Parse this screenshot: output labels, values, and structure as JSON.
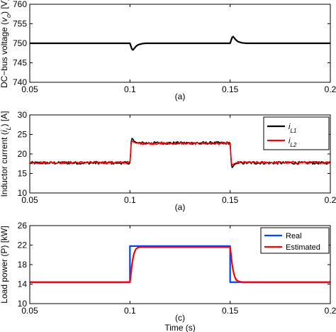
{
  "chart_data": [
    {
      "id": "dcbus",
      "type": "line",
      "caption": "(a)",
      "ylabel": "DC−bus voltage (v_o) [V]",
      "xlim": [
        0.05,
        0.2
      ],
      "ylim": [
        740,
        760
      ],
      "xticks": [
        "0.05",
        "0.1",
        "0.15",
        "0.2"
      ],
      "yticks": [
        "740",
        "745",
        "750",
        "755",
        "760"
      ],
      "grid": false,
      "series": [
        {
          "color": "#000000",
          "x": [
            0.05,
            0.1,
            0.1005,
            0.101,
            0.1015,
            0.102,
            0.103,
            0.104,
            0.106,
            0.108,
            0.11,
            0.15,
            0.1505,
            0.151,
            0.1515,
            0.152,
            0.153,
            0.154,
            0.156,
            0.158,
            0.16,
            0.2
          ],
          "y": [
            750,
            750,
            749.2,
            748.5,
            748.3,
            748.6,
            749.2,
            749.6,
            749.9,
            750,
            750,
            750,
            750.8,
            751.5,
            751.7,
            751.4,
            750.8,
            750.4,
            750.1,
            750,
            750,
            750
          ]
        }
      ]
    },
    {
      "id": "inductor",
      "type": "line",
      "caption": "(a)",
      "ylabel": "Inductor current (i_L) [A]",
      "xlim": [
        0.05,
        0.2
      ],
      "ylim": [
        10,
        30
      ],
      "xticks": [
        "0.05",
        "0.1",
        "0.15",
        "0.2"
      ],
      "yticks": [
        "10",
        "15",
        "20",
        "25",
        "30"
      ],
      "grid": false,
      "legend": "top-right",
      "series": [
        {
          "name": "i_L1",
          "color": "#000000",
          "noise": 0.35,
          "x": [
            0.05,
            0.1,
            0.1003,
            0.1006,
            0.101,
            0.1015,
            0.102,
            0.103,
            0.104,
            0.105,
            0.15,
            0.1503,
            0.1506,
            0.151,
            0.1515,
            0.152,
            0.153,
            0.154,
            0.155,
            0.2
          ],
          "y": [
            17.7,
            17.7,
            20,
            23,
            24,
            23.8,
            23.3,
            23,
            22.8,
            22.8,
            22.8,
            20,
            17.5,
            16.5,
            16.8,
            17.2,
            17.5,
            17.7,
            17.7,
            17.7
          ]
        },
        {
          "name": "i_L2",
          "color": "#ff0000",
          "noise": 0.3,
          "x": [
            0.05,
            0.1,
            0.1003,
            0.1006,
            0.101,
            0.1015,
            0.102,
            0.103,
            0.104,
            0.105,
            0.15,
            0.1503,
            0.1506,
            0.151,
            0.1515,
            0.152,
            0.153,
            0.154,
            0.155,
            0.2
          ],
          "y": [
            17.8,
            17.8,
            20,
            22.6,
            23.3,
            23.2,
            23,
            22.8,
            22.7,
            22.7,
            22.7,
            20,
            17.8,
            17.2,
            17.3,
            17.5,
            17.7,
            17.8,
            17.8,
            17.8
          ]
        }
      ]
    },
    {
      "id": "loadpower",
      "type": "line",
      "caption": "(c)",
      "ylabel": "Load power (P) [kW]",
      "xlabel": "Time (s)",
      "xlim": [
        0.05,
        0.2
      ],
      "ylim": [
        10,
        26
      ],
      "xticks": [
        "0.05",
        "0.1",
        "0.15",
        "0.2"
      ],
      "yticks": [
        "10",
        "14",
        "18",
        "22",
        "26"
      ],
      "grid": false,
      "legend": "top-right",
      "series": [
        {
          "name": "Real",
          "color": "#0044ff",
          "x": [
            0.05,
            0.1,
            0.1,
            0.15,
            0.15,
            0.2
          ],
          "y": [
            14.4,
            14.4,
            21.8,
            21.8,
            14.4,
            14.4
          ]
        },
        {
          "name": "Estimated",
          "color": "#ff0000",
          "x": [
            0.05,
            0.1,
            0.1005,
            0.101,
            0.1015,
            0.102,
            0.1025,
            0.103,
            0.104,
            0.105,
            0.106,
            0.15,
            0.1505,
            0.151,
            0.1515,
            0.152,
            0.1525,
            0.153,
            0.154,
            0.155,
            0.156,
            0.2
          ],
          "y": [
            14.4,
            14.4,
            16.2,
            18,
            19.3,
            20.2,
            20.8,
            21.2,
            21.5,
            21.6,
            21.6,
            21.6,
            19.8,
            18,
            16.8,
            15.9,
            15.3,
            14.9,
            14.6,
            14.5,
            14.4,
            14.4
          ]
        }
      ]
    }
  ]
}
